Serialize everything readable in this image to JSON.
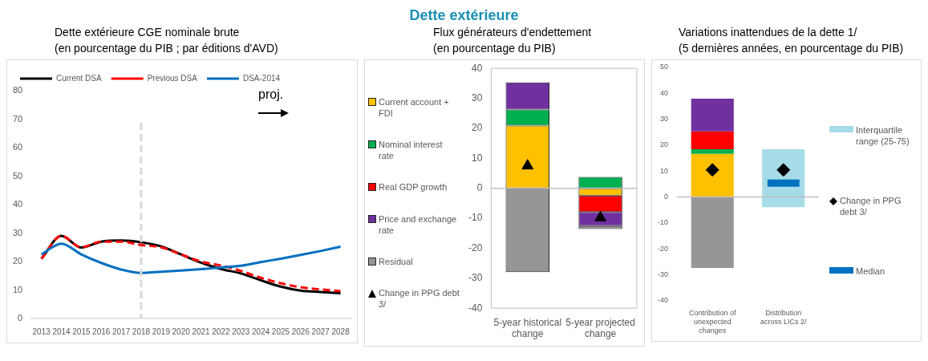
{
  "chart_data": [
    {
      "type": "other",
      "title": "Dette extérieure"
    },
    {
      "type": "line",
      "title": "Dette extérieure CGE nominale brute",
      "subtitle": "(en pourcentage du PIB ; par éditions d'AVD)",
      "categories": [
        "2013",
        "2014",
        "2015",
        "2016",
        "2017",
        "2018",
        "2019",
        "2020",
        "2021",
        "2022",
        "2023",
        "2024",
        "2025",
        "2026",
        "2027",
        "2028"
      ],
      "series": [
        {
          "name": "Current DSA",
          "color": "#000000",
          "line_style": "solid",
          "values": [
            21,
            29,
            24.9,
            27,
            27.4,
            26.8,
            25.3,
            22.5,
            19.6,
            17.4,
            15.8,
            13.4,
            11.2,
            9.8,
            9.3,
            8.9
          ]
        },
        {
          "name": "Previous DSA",
          "color": "#ff0000",
          "line_style": "dashed",
          "values": [
            21,
            29,
            25,
            27,
            27,
            25.8,
            25,
            22.5,
            20,
            18.6,
            16.7,
            14.3,
            12.4,
            11,
            10.2,
            9.6
          ]
        },
        {
          "name": "DSA-2014",
          "color": "#0070c0",
          "line_style": "solid",
          "values": [
            22.5,
            26.3,
            22.5,
            19.5,
            17.2,
            16,
            16.4,
            16.8,
            17.3,
            17.9,
            18.5,
            19.8,
            21,
            22.3,
            23.7,
            25.2
          ]
        }
      ],
      "ylim": [
        0,
        80
      ],
      "yticks": [
        0,
        10,
        20,
        30,
        40,
        50,
        60,
        70,
        80
      ],
      "legend": "top left",
      "ref_lines": [
        {
          "axis": "x",
          "value": "2018",
          "color": "#d9d9d9",
          "line_style": "dashed"
        }
      ],
      "annotations": [
        "proj."
      ]
    },
    {
      "type": "bar",
      "stacked": true,
      "title": "Flux générateurs d'endettement",
      "subtitle": "(en pourcentage du PIB)",
      "categories": [
        "5-year historical change",
        "5-year projected change"
      ],
      "series": [
        {
          "name": "Current account + FDI",
          "color": "#ffc000",
          "values": [
            20.9,
            -2.4
          ]
        },
        {
          "name": "Nominal interest rate",
          "color": "#00b050",
          "values": [
            5.4,
            3.8
          ]
        },
        {
          "name": "Real GDP growth",
          "color": "#ff0000",
          "values": [
            0,
            -5.5
          ]
        },
        {
          "name": "Price and exchange rate",
          "color": "#7030a0",
          "values": [
            9,
            -4.7
          ]
        },
        {
          "name": "Residual",
          "color": "#969696",
          "values": [
            -28,
            -1
          ]
        },
        {
          "name": "Change in PPG debt 3/",
          "type": "scatter",
          "marker": "triangle",
          "color": "#000000",
          "x": [
            "5-year historical change",
            "5-year projected change"
          ],
          "values": [
            7.5,
            -9.8
          ]
        }
      ],
      "ylim": [
        -40,
        40
      ],
      "yticks": [
        -40,
        -30,
        -20,
        -10,
        0,
        10,
        20,
        30,
        40
      ],
      "legend": "left"
    },
    {
      "type": "bar",
      "title": "Variations inattendues de la dette 1/",
      "subtitle": "(5 dernières années, en pourcentage du PIB)",
      "categories": [
        "Contribution of unexpected changes",
        "Distribution across LICs 2/"
      ],
      "series": [
        {
          "color": "#ffc000",
          "values": [
            16.6,
            null
          ],
          "base": [
            0,
            null
          ]
        },
        {
          "color": "#00b050",
          "values": [
            1.8,
            null
          ],
          "base": [
            16.6,
            null
          ]
        },
        {
          "color": "#ff0000",
          "values": [
            6.9,
            null
          ],
          "base": [
            18.4,
            null
          ]
        },
        {
          "color": "#7030a0",
          "values": [
            12.6,
            null
          ],
          "base": [
            25.3,
            null
          ]
        },
        {
          "color": "#969696",
          "values": [
            -27.4,
            null
          ],
          "base": [
            0,
            null
          ]
        },
        {
          "name": "Interquartile range (25-75)",
          "color": "#a6dce8",
          "values": [
            null,
            22.4
          ],
          "base": [
            null,
            -4
          ]
        },
        {
          "name": "Change in PPG debt 3/",
          "type": "scatter",
          "marker": "diamond",
          "color": "#000000",
          "x": [
            "Contribution of unexpected changes",
            "Distribution across LICs 2/"
          ],
          "values": [
            10.4,
            10.4
          ]
        },
        {
          "name": "Median",
          "color": "#0070c0",
          "values": [
            null,
            2.8
          ],
          "base": [
            null,
            3.9
          ]
        }
      ],
      "ylim": [
        -40,
        50
      ],
      "yticks": [
        -40,
        -30,
        -20,
        -10,
        0,
        10,
        20,
        30,
        40,
        50
      ],
      "legend": "right"
    }
  ]
}
